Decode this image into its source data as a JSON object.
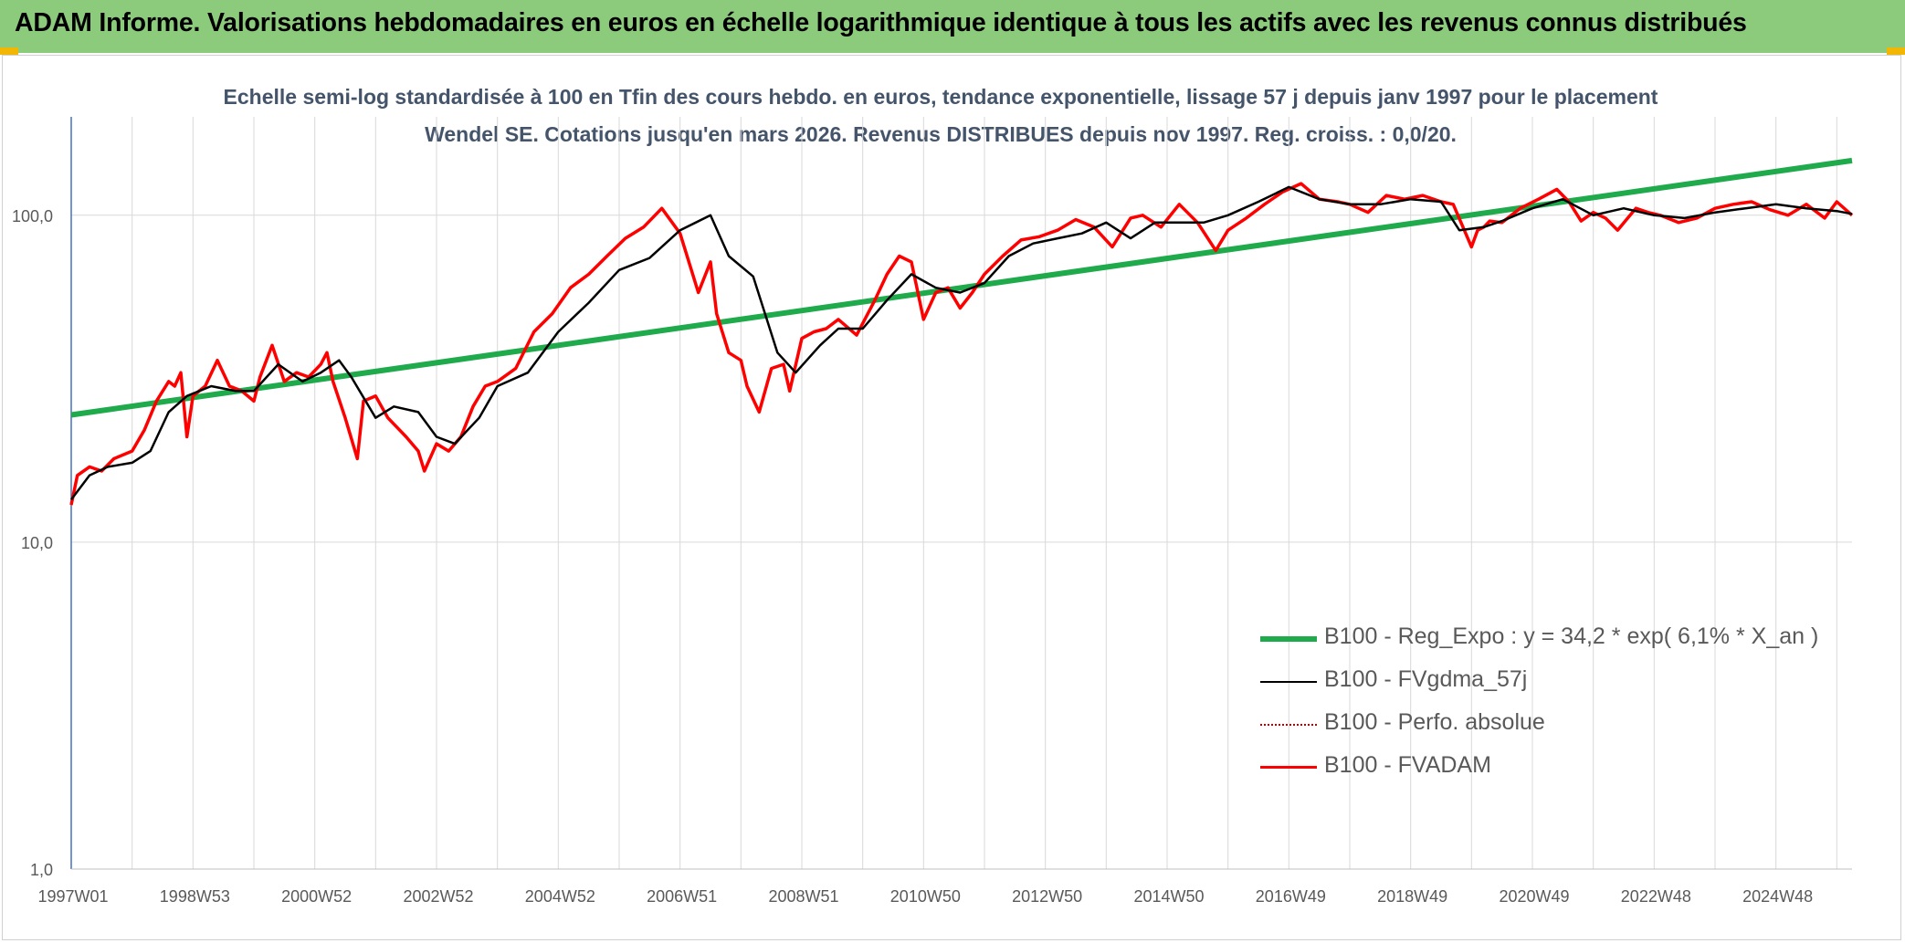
{
  "header": {
    "title": "ADAM Informe. Valorisations hebdomadaires en euros en échelle logarithmique identique à tous les actifs avec les revenus connus distribués"
  },
  "colors": {
    "banner": "#8ccb7b",
    "regression": "#1faa4b",
    "smoothed": "#000000",
    "fvadam": "#ff0000",
    "perfo": "#c00000",
    "grid": "#d9d9d9",
    "axis": "#4472c4",
    "corner": "#f2b705"
  },
  "chart_data": {
    "type": "line",
    "title": "Echelle semi-log standardisée à 100 en Tfin des cours hebdo. en euros, tendance exponentielle, lissage 57 j depuis janv 1997 pour le placement Wendel SE. Cotations jusqu'en mars 2026. Revenus DISTRIBUES depuis nov 1997. Reg. croiss. : 0,0/20.",
    "y_scale": "log",
    "ylim": [
      1,
      200
    ],
    "xlim": [
      1997.0,
      2026.25
    ],
    "y_ticks": [
      {
        "value": 1,
        "label": "1,0"
      },
      {
        "value": 10,
        "label": "10,0"
      },
      {
        "value": 100,
        "label": "100,0"
      }
    ],
    "x_ticks": [
      {
        "value": 1997.0,
        "label": "1997W01"
      },
      {
        "value": 1999.0,
        "label": "1998W53"
      },
      {
        "value": 2001.0,
        "label": "2000W52"
      },
      {
        "value": 2003.0,
        "label": "2002W52"
      },
      {
        "value": 2005.0,
        "label": "2004W52"
      },
      {
        "value": 2007.0,
        "label": "2006W51"
      },
      {
        "value": 2009.0,
        "label": "2008W51"
      },
      {
        "value": 2011.0,
        "label": "2010W50"
      },
      {
        "value": 2013.0,
        "label": "2012W50"
      },
      {
        "value": 2015.0,
        "label": "2014W50"
      },
      {
        "value": 2017.0,
        "label": "2016W49"
      },
      {
        "value": 2019.0,
        "label": "2018W49"
      },
      {
        "value": 2021.0,
        "label": "2020W49"
      },
      {
        "value": 2023.0,
        "label": "2022W48"
      },
      {
        "value": 2025.0,
        "label": "2024W48"
      }
    ],
    "grid": true,
    "legend_position": "bottom-right",
    "series": [
      {
        "name": "B100 - Reg_Expo : y = 34,2 * exp( 6,1% *  X_an )",
        "kind": "regression",
        "x": [
          1997.0,
          2026.25
        ],
        "values": [
          24.5,
          147
        ]
      },
      {
        "name": "B100 - FVgdma_57j",
        "kind": "smoothed",
        "x": [
          1997.0,
          1997.3,
          1997.6,
          1998.0,
          1998.3,
          1998.6,
          1998.9,
          1999.3,
          1999.7,
          2000.0,
          2000.4,
          2000.8,
          2001.1,
          2001.4,
          2001.6,
          2002.0,
          2002.3,
          2002.7,
          2003.0,
          2003.3,
          2003.7,
          2004.0,
          2004.5,
          2005.0,
          2005.5,
          2006.0,
          2006.5,
          2007.0,
          2007.5,
          2007.8,
          2008.2,
          2008.6,
          2008.9,
          2009.3,
          2009.6,
          2010.0,
          2010.4,
          2010.8,
          2011.2,
          2011.6,
          2012.0,
          2012.4,
          2012.8,
          2013.2,
          2013.6,
          2014.0,
          2014.4,
          2014.8,
          2015.2,
          2015.6,
          2016.0,
          2016.5,
          2017.0,
          2017.5,
          2018.0,
          2018.5,
          2019.0,
          2019.5,
          2019.8,
          2020.2,
          2020.5,
          2021.0,
          2021.5,
          2022.0,
          2022.5,
          2023.0,
          2023.5,
          2024.0,
          2024.5,
          2025.0,
          2025.5,
          2026.0,
          2026.25
        ],
        "values": [
          13.5,
          16,
          17,
          17.5,
          19,
          25,
          28,
          30,
          29,
          29,
          35,
          31,
          33,
          36,
          32,
          24,
          26,
          25,
          21,
          20,
          24,
          30,
          33,
          44,
          54,
          68,
          74,
          90,
          100,
          75,
          65,
          38,
          33,
          40,
          45,
          45,
          55,
          66,
          60,
          58,
          62,
          75,
          82,
          85,
          88,
          95,
          85,
          95,
          95,
          95,
          100,
          110,
          122,
          112,
          108,
          108,
          112,
          110,
          90,
          92,
          96,
          105,
          112,
          100,
          105,
          100,
          98,
          102,
          105,
          108,
          105,
          103,
          101
        ]
      },
      {
        "name": "B100 - Perfo. absolue",
        "kind": "perfo",
        "x": [],
        "values": []
      },
      {
        "name": "B100 - FVADAM",
        "kind": "fvadam",
        "x": [
          1997.0,
          1997.1,
          1997.3,
          1997.5,
          1997.7,
          1998.0,
          1998.2,
          1998.4,
          1998.6,
          1998.7,
          1998.8,
          1998.9,
          1999.0,
          1999.2,
          1999.4,
          1999.6,
          1999.8,
          2000.0,
          2000.1,
          2000.3,
          2000.5,
          2000.7,
          2000.9,
          2001.1,
          2001.2,
          2001.3,
          2001.5,
          2001.7,
          2001.8,
          2002.0,
          2002.2,
          2002.5,
          2002.7,
          2002.8,
          2003.0,
          2003.2,
          2003.4,
          2003.6,
          2003.8,
          2004.0,
          2004.3,
          2004.6,
          2004.9,
          2005.2,
          2005.5,
          2005.8,
          2006.1,
          2006.4,
          2006.7,
          2007.0,
          2007.3,
          2007.5,
          2007.6,
          2007.8,
          2008.0,
          2008.1,
          2008.3,
          2008.5,
          2008.7,
          2008.8,
          2009.0,
          2009.2,
          2009.4,
          2009.6,
          2009.9,
          2010.2,
          2010.4,
          2010.6,
          2010.8,
          2011.0,
          2011.2,
          2011.4,
          2011.6,
          2011.8,
          2012.0,
          2012.3,
          2012.6,
          2012.9,
          2013.2,
          2013.5,
          2013.8,
          2014.1,
          2014.4,
          2014.6,
          2014.9,
          2015.2,
          2015.5,
          2015.8,
          2016.0,
          2016.3,
          2016.6,
          2016.9,
          2017.2,
          2017.5,
          2017.8,
          2018.0,
          2018.3,
          2018.6,
          2018.9,
          2019.2,
          2019.5,
          2019.7,
          2020.0,
          2020.1,
          2020.2,
          2020.3,
          2020.5,
          2020.8,
          2021.1,
          2021.4,
          2021.6,
          2021.8,
          2022.0,
          2022.2,
          2022.4,
          2022.7,
          2022.9,
          2023.1,
          2023.4,
          2023.7,
          2024.0,
          2024.3,
          2024.6,
          2024.9,
          2025.2,
          2025.5,
          2025.8,
          2026.0,
          2026.25
        ],
        "values": [
          13,
          16,
          17,
          16.5,
          18,
          19,
          22,
          27,
          31,
          30,
          33,
          21,
          28,
          30,
          36,
          30,
          29,
          27,
          32,
          40,
          31,
          33,
          32,
          35,
          38,
          31,
          24,
          18,
          27,
          28,
          24,
          21,
          19,
          16.5,
          20,
          19,
          21,
          26,
          30,
          31,
          34,
          44,
          50,
          60,
          66,
          75,
          85,
          92,
          105,
          88,
          58,
          72,
          50,
          38,
          36,
          30,
          25,
          34,
          35,
          29,
          42,
          44,
          45,
          48,
          43,
          55,
          66,
          75,
          72,
          48,
          58,
          60,
          52,
          58,
          66,
          75,
          84,
          86,
          90,
          97,
          92,
          80,
          98,
          100,
          92,
          108,
          95,
          78,
          90,
          98,
          108,
          118,
          125,
          112,
          110,
          108,
          102,
          115,
          112,
          115,
          110,
          108,
          80,
          90,
          92,
          96,
          95,
          105,
          112,
          120,
          110,
          96,
          102,
          98,
          90,
          105,
          102,
          100,
          95,
          98,
          105,
          108,
          110,
          104,
          100,
          108,
          98,
          110,
          100
        ]
      }
    ]
  }
}
